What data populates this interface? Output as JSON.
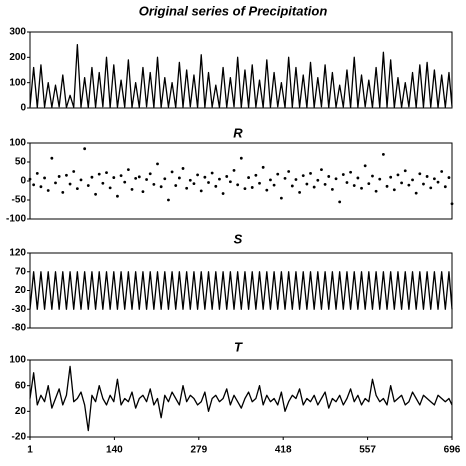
{
  "chart_data": [
    {
      "type": "line",
      "title": "Original series of Precipitation",
      "color": "#000000",
      "x": [
        1,
        7,
        13,
        19,
        25,
        31,
        37,
        43,
        49,
        55,
        61,
        67,
        73,
        79,
        85,
        91,
        97,
        103,
        109,
        115,
        121,
        127,
        133,
        139,
        145,
        151,
        157,
        163,
        169,
        175,
        181,
        187,
        193,
        199,
        205,
        211,
        217,
        223,
        229,
        235,
        241,
        247,
        253,
        259,
        265,
        271,
        277,
        283,
        289,
        295,
        301,
        307,
        313,
        319,
        325,
        331,
        337,
        343,
        349,
        355,
        361,
        367,
        373,
        379,
        385,
        391,
        397,
        403,
        409,
        415,
        421,
        427,
        433,
        439,
        445,
        451,
        457,
        463,
        469,
        475,
        481,
        487,
        493,
        499,
        505,
        511,
        517,
        523,
        529,
        535,
        541,
        547,
        553,
        559,
        565,
        571,
        577,
        583,
        589,
        595,
        601,
        607,
        613,
        619,
        625,
        631,
        637,
        643,
        649,
        655,
        661,
        667,
        673,
        679,
        685,
        691,
        696
      ],
      "values": [
        3,
        160,
        2,
        170,
        4,
        100,
        3,
        90,
        5,
        130,
        2,
        50,
        3,
        250,
        4,
        120,
        2,
        160,
        3,
        140,
        5,
        200,
        2,
        170,
        3,
        110,
        4,
        190,
        2,
        100,
        3,
        160,
        5,
        140,
        2,
        200,
        3,
        120,
        4,
        100,
        2,
        180,
        3,
        150,
        5,
        130,
        2,
        210,
        3,
        140,
        4,
        90,
        2,
        160,
        3,
        120,
        5,
        200,
        2,
        150,
        3,
        170,
        4,
        110,
        2,
        190,
        3,
        140,
        5,
        100,
        2,
        200,
        3,
        160,
        4,
        130,
        2,
        180,
        3,
        120,
        5,
        170,
        2,
        140,
        3,
        90,
        4,
        150,
        2,
        200,
        3,
        130,
        5,
        110,
        2,
        160,
        3,
        220,
        4,
        190,
        2,
        120,
        3,
        100,
        5,
        140,
        2,
        170,
        3,
        180,
        4,
        150,
        2,
        130,
        3,
        140,
        5
      ],
      "xlim": [
        1,
        696
      ],
      "ylim": [
        0,
        300
      ],
      "yticks": [
        0,
        100,
        200,
        300
      ]
    },
    {
      "type": "scatter",
      "title": "R",
      "color": "#000000",
      "x": [
        1,
        7,
        13,
        19,
        25,
        31,
        37,
        43,
        49,
        55,
        61,
        67,
        73,
        79,
        85,
        91,
        97,
        103,
        109,
        115,
        121,
        127,
        133,
        139,
        145,
        151,
        157,
        163,
        169,
        175,
        181,
        187,
        193,
        199,
        205,
        211,
        217,
        223,
        229,
        235,
        241,
        247,
        253,
        259,
        265,
        271,
        277,
        283,
        289,
        295,
        301,
        307,
        313,
        319,
        325,
        331,
        337,
        343,
        349,
        355,
        361,
        367,
        373,
        379,
        385,
        391,
        397,
        403,
        409,
        415,
        421,
        427,
        433,
        439,
        445,
        451,
        457,
        463,
        469,
        475,
        481,
        487,
        493,
        499,
        505,
        511,
        517,
        523,
        529,
        535,
        541,
        547,
        553,
        559,
        565,
        571,
        577,
        583,
        589,
        595,
        601,
        607,
        613,
        619,
        625,
        631,
        637,
        643,
        649,
        655,
        661,
        667,
        673,
        679,
        685,
        691,
        696
      ],
      "values": [
        5,
        -10,
        20,
        -15,
        8,
        -25,
        60,
        -5,
        12,
        -30,
        15,
        -8,
        25,
        -20,
        3,
        85,
        -12,
        10,
        -35,
        18,
        -6,
        22,
        -18,
        9,
        -40,
        14,
        -3,
        30,
        -22,
        7,
        11,
        -28,
        4,
        19,
        -9,
        45,
        -15,
        6,
        -50,
        24,
        -12,
        8,
        33,
        -19,
        2,
        -7,
        16,
        -26,
        10,
        -4,
        21,
        -14,
        5,
        -33,
        12,
        -2,
        28,
        -10,
        60,
        -20,
        9,
        -17,
        15,
        -6,
        36,
        -24,
        3,
        -11,
        18,
        -45,
        7,
        25,
        -13,
        4,
        -30,
        14,
        -8,
        20,
        -16,
        2,
        30,
        -9,
        12,
        -22,
        6,
        -55,
        17,
        -4,
        23,
        -12,
        8,
        -19,
        40,
        -7,
        13,
        -27,
        5,
        70,
        -14,
        10,
        -23,
        16,
        -5,
        27,
        -11,
        3,
        -32,
        19,
        -8,
        12,
        -18,
        6,
        -3,
        25,
        -15,
        9,
        -60
      ],
      "xlim": [
        1,
        696
      ],
      "ylim": [
        -100,
        100
      ],
      "yticks": [
        -100,
        -50,
        0,
        50,
        100
      ]
    },
    {
      "type": "line",
      "title": "S",
      "color": "#000000",
      "x": [
        1,
        7,
        13,
        19,
        25,
        31,
        37,
        43,
        49,
        55,
        61,
        67,
        73,
        79,
        85,
        91,
        97,
        103,
        109,
        115,
        121,
        127,
        133,
        139,
        145,
        151,
        157,
        163,
        169,
        175,
        181,
        187,
        193,
        199,
        205,
        211,
        217,
        223,
        229,
        235,
        241,
        247,
        253,
        259,
        265,
        271,
        277,
        283,
        289,
        295,
        301,
        307,
        313,
        319,
        325,
        331,
        337,
        343,
        349,
        355,
        361,
        367,
        373,
        379,
        385,
        391,
        397,
        403,
        409,
        415,
        421,
        427,
        433,
        439,
        445,
        451,
        457,
        463,
        469,
        475,
        481,
        487,
        493,
        499,
        505,
        511,
        517,
        523,
        529,
        535,
        541,
        547,
        553,
        559,
        565,
        571,
        577,
        583,
        589,
        595,
        601,
        607,
        613,
        619,
        625,
        631,
        637,
        643,
        649,
        655,
        661,
        667,
        673,
        679,
        685,
        691,
        696
      ],
      "values": [
        -30,
        70,
        -30,
        70,
        -30,
        70,
        -30,
        70,
        -30,
        70,
        -30,
        70,
        -30,
        70,
        -30,
        70,
        -30,
        70,
        -30,
        70,
        -30,
        70,
        -30,
        70,
        -30,
        70,
        -30,
        70,
        -30,
        70,
        -30,
        70,
        -30,
        70,
        -30,
        70,
        -30,
        70,
        -30,
        70,
        -30,
        70,
        -30,
        70,
        -30,
        70,
        -30,
        70,
        -30,
        70,
        -30,
        70,
        -30,
        70,
        -30,
        70,
        -30,
        70,
        -30,
        70,
        -30,
        70,
        -30,
        70,
        -30,
        70,
        -30,
        70,
        -30,
        70,
        -30,
        70,
        -30,
        70,
        -30,
        70,
        -30,
        70,
        -30,
        70,
        -30,
        70,
        -30,
        70,
        -30,
        70,
        -30,
        70,
        -30,
        70,
        -30,
        70,
        -30,
        70,
        -30,
        70,
        -30,
        70,
        -30,
        70,
        -30,
        70,
        -30,
        70,
        -30,
        70,
        -30,
        70,
        -30,
        70,
        -30,
        70,
        -30,
        70,
        -30,
        70,
        -30
      ],
      "xlim": [
        1,
        696
      ],
      "ylim": [
        -80,
        120
      ],
      "yticks": [
        -80,
        -30,
        20,
        70,
        120
      ]
    },
    {
      "type": "line",
      "title": "T",
      "color": "#000000",
      "x": [
        1,
        7,
        13,
        19,
        25,
        31,
        37,
        43,
        49,
        55,
        61,
        67,
        73,
        79,
        85,
        91,
        97,
        103,
        109,
        115,
        121,
        127,
        133,
        139,
        145,
        151,
        157,
        163,
        169,
        175,
        181,
        187,
        193,
        199,
        205,
        211,
        217,
        223,
        229,
        235,
        241,
        247,
        253,
        259,
        265,
        271,
        277,
        283,
        289,
        295,
        301,
        307,
        313,
        319,
        325,
        331,
        337,
        343,
        349,
        355,
        361,
        367,
        373,
        379,
        385,
        391,
        397,
        403,
        409,
        415,
        421,
        427,
        433,
        439,
        445,
        451,
        457,
        463,
        469,
        475,
        481,
        487,
        493,
        499,
        505,
        511,
        517,
        523,
        529,
        535,
        541,
        547,
        553,
        559,
        565,
        571,
        577,
        583,
        589,
        595,
        601,
        607,
        613,
        619,
        625,
        631,
        637,
        643,
        649,
        655,
        661,
        667,
        673,
        679,
        685,
        691,
        696
      ],
      "values": [
        40,
        80,
        30,
        45,
        35,
        60,
        25,
        40,
        55,
        30,
        45,
        90,
        35,
        40,
        50,
        30,
        -10,
        45,
        35,
        60,
        40,
        30,
        45,
        35,
        70,
        30,
        40,
        35,
        50,
        25,
        40,
        45,
        35,
        55,
        30,
        40,
        10,
        45,
        35,
        50,
        40,
        30,
        60,
        35,
        45,
        40,
        30,
        35,
        50,
        20,
        40,
        45,
        35,
        40,
        55,
        30,
        45,
        35,
        25,
        40,
        50,
        35,
        40,
        60,
        30,
        45,
        35,
        40,
        30,
        50,
        20,
        35,
        45,
        40,
        55,
        30,
        40,
        35,
        45,
        30,
        40,
        50,
        25,
        40,
        35,
        45,
        30,
        40,
        55,
        35,
        45,
        30,
        40,
        35,
        70,
        45,
        35,
        40,
        30,
        60,
        35,
        40,
        45,
        30,
        35,
        50,
        40,
        30,
        45,
        40,
        35,
        30,
        45,
        40,
        35,
        40,
        30
      ],
      "xlim": [
        1,
        696
      ],
      "ylim": [
        -20,
        100
      ],
      "yticks": [
        -20,
        20,
        60,
        100
      ],
      "xticks": [
        1,
        140,
        279,
        418,
        557,
        696
      ]
    }
  ]
}
